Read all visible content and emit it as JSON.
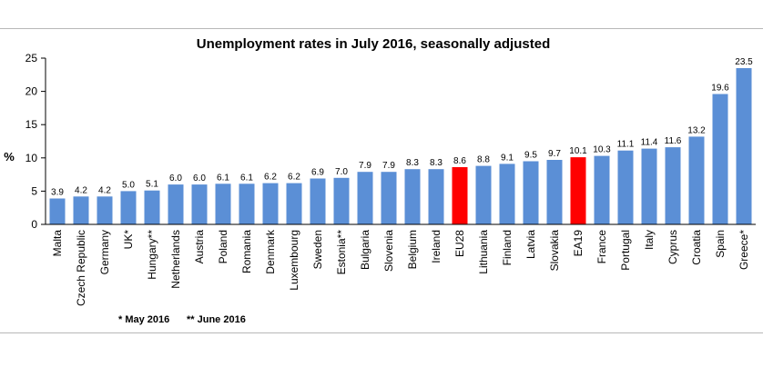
{
  "chart_data": {
    "type": "bar",
    "title": "Unemployment rates in July 2016, seasonally adjusted",
    "xlabel": "",
    "ylabel": "%",
    "ylim": [
      0,
      25
    ],
    "yticks": [
      0,
      5,
      10,
      15,
      20,
      25
    ],
    "grid": false,
    "categories": [
      "Malta",
      "Czech Republic",
      "Germany",
      "UK*",
      "Hungary**",
      "Netherlands",
      "Austria",
      "Poland",
      "Romania",
      "Denmark",
      "Luxembourg",
      "Sweden",
      "Estonia**",
      "Bulgaria",
      "Slovenia",
      "Belgium",
      "Ireland",
      "EU28",
      "Lithuania",
      "Finland",
      "Latvia",
      "Slovakia",
      "EA19",
      "France",
      "Portugal",
      "Italy",
      "Cyprus",
      "Croatia",
      "Spain",
      "Greece*"
    ],
    "values": [
      3.9,
      4.2,
      4.2,
      5.0,
      5.1,
      6.0,
      6.0,
      6.1,
      6.1,
      6.2,
      6.2,
      6.9,
      7.0,
      7.9,
      7.9,
      8.3,
      8.3,
      8.6,
      8.8,
      9.1,
      9.5,
      9.7,
      10.1,
      10.3,
      11.1,
      11.4,
      11.6,
      13.2,
      19.6,
      23.5
    ],
    "value_labels": [
      "3.9",
      "4.2",
      "4.2",
      "5.0",
      "5.1",
      "6.0",
      "6.0",
      "6.1",
      "6.1",
      "6.2",
      "6.2",
      "6.9",
      "7.0",
      "7.9",
      "7.9",
      "8.3",
      "8.3",
      "8.6",
      "8.8",
      "9.1",
      "9.5",
      "9.7",
      "10.1",
      "10.3",
      "11.1",
      "11.4",
      "11.6",
      "13.2",
      "19.6",
      "23.5"
    ],
    "highlighted": [
      "EU28",
      "EA19"
    ],
    "colors": {
      "bar": "#5b8fd6",
      "highlight": "#ff0000",
      "axis": "#000000"
    },
    "footnotes": [
      "* May 2016",
      "** June 2016"
    ]
  }
}
